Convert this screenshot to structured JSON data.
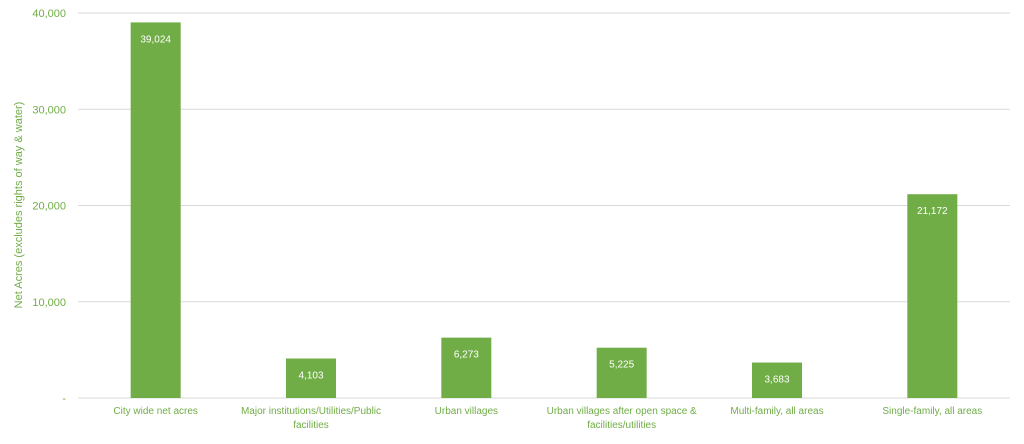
{
  "chart_data": {
    "type": "bar",
    "categories": [
      [
        "City wide net acres"
      ],
      [
        "Major institutions/Utilities/Public",
        "facilities"
      ],
      [
        "Urban villages"
      ],
      [
        "Urban villages after open space &",
        "facilities/utilities"
      ],
      [
        "Multi-family, all areas"
      ],
      [
        "Single-family, all areas"
      ]
    ],
    "values": [
      39024,
      4103,
      6273,
      5225,
      3683,
      21172
    ],
    "data_labels": [
      "39,024",
      "4,103",
      "6,273",
      "5,225",
      "3,683",
      "21,172"
    ],
    "ylabel": "Net Acres  (excludes rights of way & water)",
    "ylim": [
      0,
      40000
    ],
    "yticks": [
      {
        "value": 0,
        "label": "-"
      },
      {
        "value": 10000,
        "label": "10,000"
      },
      {
        "value": 20000,
        "label": "20,000"
      },
      {
        "value": 30000,
        "label": "30,000"
      },
      {
        "value": 40000,
        "label": "40,000"
      }
    ],
    "grid": true,
    "legend": "none",
    "colors": {
      "bar": "#70ad47",
      "grid": "#d9d9d9",
      "axis_text": "#70ad47",
      "category_text": "#70ad47",
      "data_label": "#ffffff"
    }
  }
}
